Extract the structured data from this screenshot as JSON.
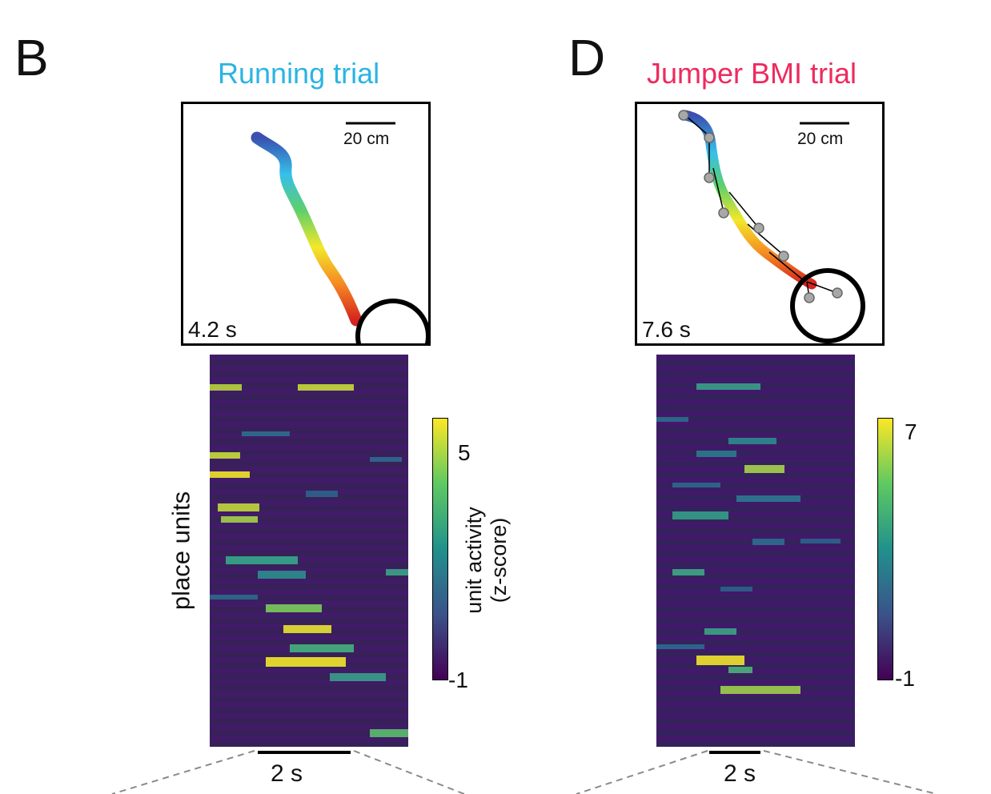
{
  "panel_B": {
    "letter": "B",
    "title": "Running trial",
    "title_color": "#2bb4e3",
    "scale_bar_label": "20 cm",
    "duration_label": "4.2 s",
    "y_axis_label": "place units",
    "colorbar_label_line1": "unit activity",
    "colorbar_label_line2": "(z-score)",
    "colorbar_max": "5",
    "colorbar_min": "-1",
    "time_scale_label": "2 s"
  },
  "panel_D": {
    "letter": "D",
    "title": "Jumper BMI trial",
    "title_color": "#ee2a5f",
    "scale_bar_label": "20 cm",
    "duration_label": "7.6 s",
    "colorbar_max": "7",
    "colorbar_min": "-1",
    "time_scale_label": "2 s"
  },
  "colors": {
    "viridis": [
      "#440154",
      "#3b528b",
      "#21918c",
      "#5ec962",
      "#fde725"
    ],
    "trajectory": [
      "#3a4fb0",
      "#35c0ea",
      "#5fcf6a",
      "#f2e82a",
      "#f58a22",
      "#d6231e"
    ]
  }
}
